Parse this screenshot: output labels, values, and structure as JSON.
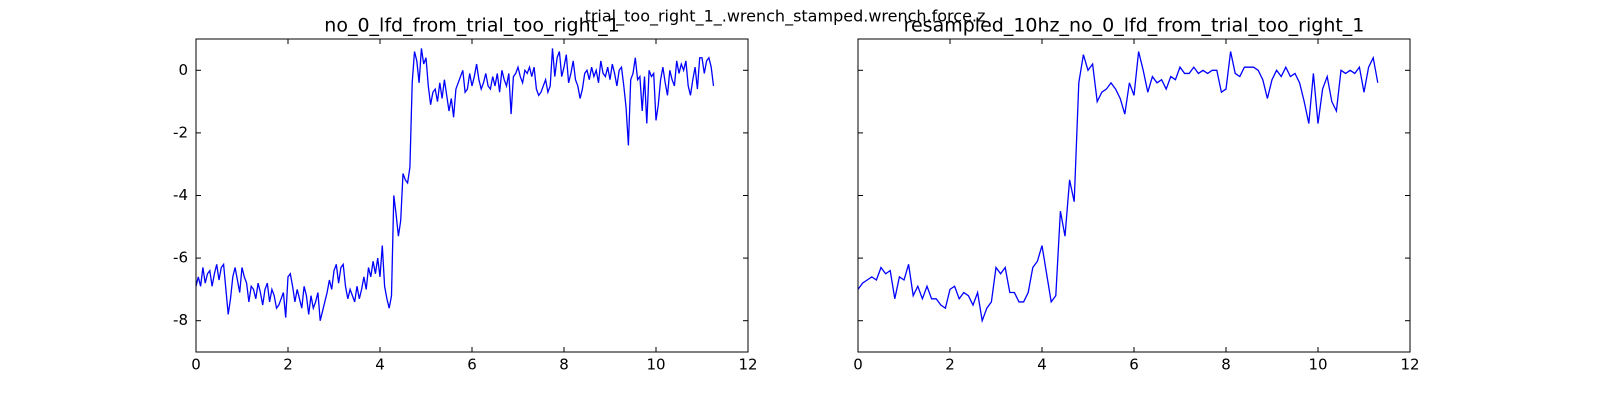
{
  "title": "trial_too_right_1_.wrench_stamped.wrench.force.z",
  "chart_data": [
    {
      "type": "line",
      "title": "no_0_lfd_from_trial_too_right_1",
      "xlim": [
        0,
        12
      ],
      "ylim": [
        -9,
        1
      ],
      "xticks": [
        0,
        2,
        4,
        6,
        8,
        10,
        12
      ],
      "yticks": [
        -8,
        -6,
        -4,
        -2,
        0
      ],
      "yticklabels": true,
      "series": [
        {
          "color": "#0000ff",
          "x": [
            0,
            0.05,
            0.1,
            0.15,
            0.2,
            0.25,
            0.3,
            0.35,
            0.4,
            0.45,
            0.5,
            0.55,
            0.6,
            0.65,
            0.7,
            0.75,
            0.8,
            0.85,
            0.9,
            0.95,
            1,
            1.05,
            1.1,
            1.15,
            1.2,
            1.25,
            1.3,
            1.35,
            1.4,
            1.45,
            1.5,
            1.55,
            1.6,
            1.65,
            1.7,
            1.75,
            1.8,
            1.85,
            1.9,
            1.95,
            2,
            2.05,
            2.1,
            2.15,
            2.2,
            2.25,
            2.3,
            2.35,
            2.4,
            2.45,
            2.5,
            2.55,
            2.6,
            2.65,
            2.7,
            2.75,
            2.8,
            2.85,
            2.9,
            2.95,
            3,
            3.05,
            3.1,
            3.15,
            3.2,
            3.25,
            3.3,
            3.35,
            3.4,
            3.45,
            3.5,
            3.55,
            3.6,
            3.65,
            3.7,
            3.75,
            3.8,
            3.85,
            3.9,
            3.95,
            4,
            4.05,
            4.1,
            4.15,
            4.2,
            4.25,
            4.3,
            4.35,
            4.4,
            4.45,
            4.5,
            4.55,
            4.6,
            4.65,
            4.7,
            4.75,
            4.8,
            4.85,
            4.9,
            4.95,
            5,
            5.05,
            5.1,
            5.15,
            5.2,
            5.25,
            5.3,
            5.35,
            5.4,
            5.45,
            5.5,
            5.55,
            5.6,
            5.65,
            5.7,
            5.75,
            5.8,
            5.85,
            5.9,
            5.95,
            6,
            6.05,
            6.1,
            6.15,
            6.2,
            6.25,
            6.3,
            6.35,
            6.4,
            6.45,
            6.5,
            6.55,
            6.6,
            6.65,
            6.7,
            6.75,
            6.8,
            6.85,
            6.9,
            6.95,
            7,
            7.05,
            7.1,
            7.15,
            7.2,
            7.25,
            7.3,
            7.35,
            7.4,
            7.45,
            7.5,
            7.55,
            7.6,
            7.65,
            7.7,
            7.75,
            7.8,
            7.85,
            7.9,
            7.95,
            8,
            8.05,
            8.1,
            8.15,
            8.2,
            8.25,
            8.3,
            8.35,
            8.4,
            8.45,
            8.5,
            8.55,
            8.6,
            8.65,
            8.7,
            8.75,
            8.8,
            8.85,
            8.9,
            8.95,
            9,
            9.05,
            9.1,
            9.15,
            9.2,
            9.25,
            9.3,
            9.35,
            9.4,
            9.45,
            9.5,
            9.55,
            9.6,
            9.65,
            9.7,
            9.75,
            9.8,
            9.85,
            9.9,
            9.95,
            10,
            10.05,
            10.1,
            10.15,
            10.2,
            10.25,
            10.3,
            10.35,
            10.4,
            10.45,
            10.5,
            10.55,
            10.6,
            10.65,
            10.7,
            10.75,
            10.8,
            10.85,
            10.9,
            10.95,
            11,
            11.05,
            11.1,
            11.15,
            11.2,
            11.25
          ],
          "values": [
            -6.9,
            -6.6,
            -6.9,
            -6.3,
            -6.8,
            -6.5,
            -6.4,
            -6.9,
            -6.5,
            -6.2,
            -6.7,
            -6.3,
            -6.2,
            -7.0,
            -7.8,
            -7.3,
            -6.6,
            -6.3,
            -6.7,
            -7.1,
            -6.3,
            -6.6,
            -6.8,
            -7.4,
            -6.9,
            -7.0,
            -7.3,
            -6.8,
            -7.1,
            -7.5,
            -7.0,
            -6.8,
            -7.4,
            -7.0,
            -7.2,
            -7.6,
            -7.5,
            -7.3,
            -7.1,
            -7.9,
            -6.6,
            -6.5,
            -6.9,
            -7.4,
            -7.0,
            -7.3,
            -7.6,
            -6.9,
            -7.2,
            -7.8,
            -7.2,
            -7.6,
            -7.4,
            -7.1,
            -8.0,
            -7.7,
            -7.4,
            -7.1,
            -6.7,
            -7.0,
            -6.4,
            -6.2,
            -6.8,
            -6.3,
            -6.2,
            -6.9,
            -7.3,
            -7.0,
            -7.2,
            -7.4,
            -6.9,
            -7.3,
            -7.0,
            -6.6,
            -7.0,
            -6.3,
            -6.6,
            -6.1,
            -6.5,
            -6.0,
            -6.6,
            -5.6,
            -6.9,
            -7.3,
            -7.6,
            -7.2,
            -4.0,
            -4.6,
            -5.3,
            -4.8,
            -3.3,
            -3.5,
            -3.6,
            -3.1,
            -0.4,
            0.6,
            0.3,
            -0.4,
            0.7,
            0.2,
            0.4,
            -0.5,
            -1.1,
            -0.7,
            -0.6,
            -1.0,
            -0.4,
            -0.9,
            -0.3,
            -0.8,
            -1.3,
            -0.9,
            -1.5,
            -0.6,
            -0.4,
            -0.2,
            0.0,
            -0.7,
            -0.6,
            -0.1,
            -0.5,
            -0.2,
            0.2,
            -0.3,
            -0.6,
            -0.4,
            -0.1,
            -0.5,
            -0.6,
            -0.2,
            -0.5,
            -0.1,
            -0.7,
            0.0,
            -0.3,
            -0.5,
            -0.1,
            -1.4,
            -0.2,
            -0.1,
            0.1,
            -0.2,
            -0.4,
            0.0,
            -0.1,
            0.1,
            -0.2,
            0.1,
            -0.6,
            -0.8,
            -0.7,
            -0.5,
            -0.3,
            -0.7,
            -0.5,
            0.7,
            -0.2,
            0.4,
            0.6,
            -0.2,
            0.1,
            0.5,
            -0.4,
            -0.1,
            0.3,
            -0.3,
            -0.5,
            -0.9,
            -0.6,
            -0.1,
            0.0,
            -0.3,
            0.1,
            -0.2,
            0.0,
            -0.4,
            0.3,
            -0.1,
            -0.2,
            0.1,
            -0.3,
            0.2,
            -0.1,
            -0.5,
            0.0,
            0.1,
            -0.5,
            -1.2,
            -2.4,
            -0.3,
            -0.1,
            0.4,
            -0.3,
            -0.2,
            -1.3,
            -0.2,
            -1.7,
            0.0,
            -0.2,
            -0.1,
            -1.6,
            -1.1,
            -0.3,
            0.1,
            -0.4,
            -0.8,
            0.0,
            -0.3,
            -0.5,
            0.3,
            -0.1,
            0.2,
            0.0,
            0.3,
            -0.5,
            -0.8,
            -0.3,
            0.1,
            -0.6,
            0.4,
            0.4,
            -0.1,
            0.3,
            0.4,
            0.1,
            -0.5
          ]
        }
      ]
    },
    {
      "type": "line",
      "title": "resampled_10hz_no_0_lfd_from_trial_too_right_1",
      "xlim": [
        0,
        12
      ],
      "ylim": [
        -9,
        1
      ],
      "xticks": [
        0,
        2,
        4,
        6,
        8,
        10,
        12
      ],
      "yticks": [
        -8,
        -6,
        -4,
        -2,
        0
      ],
      "yticklabels": false,
      "series": [
        {
          "color": "#0000ff",
          "x": [
            0,
            0.1,
            0.2,
            0.3,
            0.4,
            0.5,
            0.6,
            0.7,
            0.8,
            0.9,
            1,
            1.1,
            1.2,
            1.3,
            1.4,
            1.5,
            1.6,
            1.7,
            1.8,
            1.9,
            2,
            2.1,
            2.2,
            2.3,
            2.4,
            2.5,
            2.6,
            2.7,
            2.8,
            2.9,
            3,
            3.1,
            3.2,
            3.3,
            3.4,
            3.5,
            3.6,
            3.7,
            3.8,
            3.9,
            4,
            4.1,
            4.2,
            4.3,
            4.4,
            4.5,
            4.6,
            4.7,
            4.8,
            4.9,
            5,
            5.1,
            5.2,
            5.3,
            5.4,
            5.5,
            5.6,
            5.7,
            5.8,
            5.9,
            6,
            6.1,
            6.2,
            6.3,
            6.4,
            6.5,
            6.6,
            6.7,
            6.8,
            6.9,
            7,
            7.1,
            7.2,
            7.3,
            7.4,
            7.5,
            7.6,
            7.7,
            7.8,
            7.9,
            8,
            8.1,
            8.2,
            8.3,
            8.4,
            8.5,
            8.6,
            8.7,
            8.8,
            8.9,
            9,
            9.1,
            9.2,
            9.3,
            9.4,
            9.5,
            9.6,
            9.7,
            9.8,
            9.9,
            10,
            10.1,
            10.2,
            10.3,
            10.4,
            10.5,
            10.6,
            10.7,
            10.8,
            10.9,
            11,
            11.1,
            11.2,
            11.3
          ],
          "values": [
            -7.0,
            -6.8,
            -6.7,
            -6.6,
            -6.7,
            -6.3,
            -6.5,
            -6.4,
            -7.3,
            -6.6,
            -6.7,
            -6.2,
            -7.2,
            -6.9,
            -7.3,
            -6.9,
            -7.3,
            -7.3,
            -7.5,
            -7.6,
            -7.0,
            -6.9,
            -7.3,
            -7.1,
            -7.2,
            -7.5,
            -7.1,
            -8.0,
            -7.6,
            -7.4,
            -6.3,
            -6.5,
            -6.3,
            -7.1,
            -7.1,
            -7.4,
            -7.4,
            -7.1,
            -6.3,
            -6.1,
            -5.6,
            -6.5,
            -7.4,
            -7.2,
            -4.5,
            -5.3,
            -3.5,
            -4.2,
            -0.4,
            0.5,
            0.0,
            0.2,
            -1.0,
            -0.7,
            -0.6,
            -0.4,
            -0.6,
            -0.9,
            -1.4,
            -0.4,
            -0.8,
            0.6,
            0.0,
            -0.7,
            -0.2,
            -0.4,
            -0.3,
            -0.6,
            -0.2,
            -0.3,
            0.1,
            -0.1,
            -0.1,
            0.1,
            -0.1,
            0.0,
            -0.1,
            0.0,
            0.0,
            -0.7,
            -0.6,
            0.6,
            -0.1,
            -0.2,
            0.1,
            0.1,
            0.1,
            0.0,
            -0.3,
            -0.9,
            -0.3,
            0.0,
            -0.2,
            0.1,
            -0.2,
            -0.1,
            -0.4,
            -1.0,
            -1.7,
            -0.1,
            -1.7,
            -0.6,
            -0.2,
            -1.0,
            -1.3,
            0.0,
            -0.1,
            0.0,
            -0.1,
            0.1,
            -0.7,
            0.1,
            0.4,
            -0.4
          ]
        }
      ]
    }
  ]
}
